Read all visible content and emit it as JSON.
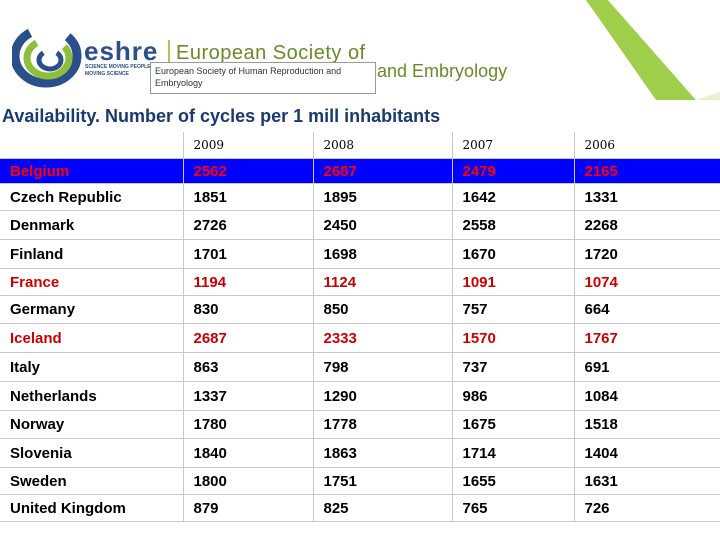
{
  "header": {
    "brand": "eshre",
    "brand_tagline_1": "SCIENCE MOVING PEOPLE",
    "brand_tagline_2": "MOVING SCIENCE",
    "org_name_line1": "European Society of",
    "org_name_line2": "on and Embryology",
    "overlay_line1": "European Society of Human Reproduction and",
    "overlay_line2": "Embryology"
  },
  "title": "Availability. Number of cycles per 1 mill inhabitants",
  "colors": {
    "highlight_bg": "#0000ff",
    "highlight_text": "#ff0000",
    "red_text": "#cc0000",
    "title": "#1a3a6e",
    "brand": "#2a4f8a",
    "green": "#6a8a2a"
  },
  "table": {
    "columns": [
      "",
      "2009",
      "2008",
      "2007",
      "2006"
    ],
    "rows": [
      {
        "country": "Belgium",
        "values": [
          "2562",
          "2687",
          "2479",
          "2165"
        ]
      },
      {
        "country": "Czech Republic",
        "values": [
          "1851",
          "1895",
          "1642",
          "1331"
        ]
      },
      {
        "country": "Denmark",
        "values": [
          "2726",
          "2450",
          "2558",
          "2268"
        ]
      },
      {
        "country": "Finland",
        "values": [
          "1701",
          "1698",
          "1670",
          "1720"
        ]
      },
      {
        "country": "France",
        "values": [
          "1194",
          "1124",
          "1091",
          "1074"
        ]
      },
      {
        "country": "Germany",
        "values": [
          "830",
          "850",
          "757",
          "664"
        ]
      },
      {
        "country": "Iceland",
        "values": [
          "2687",
          "2333",
          "1570",
          "1767"
        ]
      },
      {
        "country": "Italy",
        "values": [
          "863",
          "798",
          "737",
          "691"
        ]
      },
      {
        "country": "Netherlands",
        "values": [
          "1337",
          "1290",
          "986",
          "1084"
        ]
      },
      {
        "country": "Norway",
        "values": [
          "1780",
          "1778",
          "1675",
          "1518"
        ]
      },
      {
        "country": "Slovenia",
        "values": [
          "1840",
          "1863",
          "1714",
          "1404"
        ]
      },
      {
        "country": "Sweden",
        "values": [
          "1800",
          "1751",
          "1655",
          "1631"
        ]
      },
      {
        "country": "United Kingdom",
        "values": [
          "879",
          "825",
          "765",
          "726"
        ]
      }
    ]
  }
}
